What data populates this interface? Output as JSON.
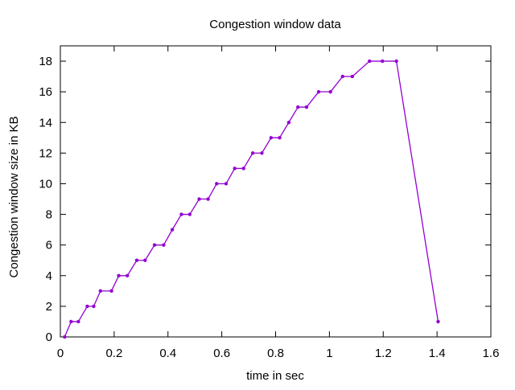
{
  "chart_data": {
    "type": "line",
    "title": "Congestion window data",
    "xlabel": "time in sec",
    "ylabel": "Congestion window size in KB",
    "xlim": [
      0,
      1.6
    ],
    "ylim": [
      0,
      19
    ],
    "xticks": [
      0,
      0.2,
      0.4,
      0.6,
      0.8,
      1,
      1.2,
      1.4,
      1.6
    ],
    "xtick_labels": [
      "0",
      "0.2",
      "0.4",
      "0.6",
      "0.8",
      "1",
      "1.2",
      "1.4",
      "1.6"
    ],
    "yticks": [
      0,
      2,
      4,
      6,
      8,
      10,
      12,
      14,
      16,
      18
    ],
    "ytick_labels": [
      "0",
      "2",
      "4",
      "6",
      "8",
      "10",
      "12",
      "14",
      "16",
      "18"
    ],
    "grid": false,
    "legend": "none",
    "series": [
      {
        "color": "#9400d3",
        "x": [
          0.016,
          0.04,
          0.067,
          0.1,
          0.124,
          0.149,
          0.19,
          0.217,
          0.249,
          0.284,
          0.315,
          0.35,
          0.384,
          0.416,
          0.45,
          0.481,
          0.516,
          0.549,
          0.581,
          0.616,
          0.648,
          0.681,
          0.715,
          0.749,
          0.783,
          0.815,
          0.849,
          0.883,
          0.915,
          0.96,
          1.004,
          1.049,
          1.085,
          1.149,
          1.197,
          1.249,
          1.404
        ],
        "y": [
          0,
          1,
          1,
          2,
          2,
          3,
          3,
          4,
          4,
          5,
          5,
          6,
          6,
          7,
          8,
          8,
          9,
          9,
          10,
          10,
          11,
          11,
          12,
          12,
          13,
          13,
          14,
          15,
          15,
          16,
          16,
          17,
          17,
          18,
          18,
          18,
          1
        ]
      }
    ]
  }
}
